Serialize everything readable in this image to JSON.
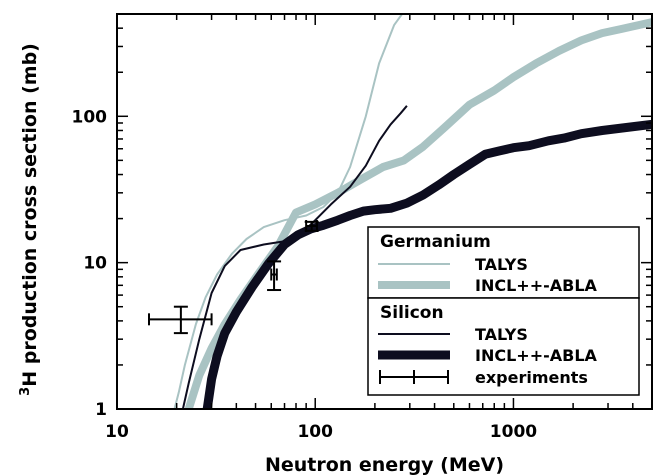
{
  "chart_data": {
    "type": "line",
    "xlabel": "Neutron energy (MeV)",
    "ylabel": "H production cross section (mb)",
    "ylabel_superscript": "3",
    "xscale": "log",
    "yscale": "log",
    "xlim": [
      10,
      5000
    ],
    "ylim": [
      1,
      500
    ],
    "xticks": [
      10,
      100,
      1000
    ],
    "xtick_labels": [
      "10",
      "100",
      "1000"
    ],
    "yticks": [
      1,
      10,
      100
    ],
    "ytick_labels": [
      "1",
      "10",
      "100"
    ],
    "grid": false,
    "legend_position": "lower-right",
    "legend_groups": [
      "Germanium",
      "Silicon"
    ],
    "colors": {
      "germanium": "#a9c3c3",
      "silicon": "#0d0d1f",
      "experiments": "#000000"
    },
    "series": [
      {
        "name": "TALYS",
        "group": "Germanium",
        "style": "thin",
        "x": [
          19.5,
          20.5,
          22,
          25,
          28,
          32,
          38,
          45,
          55,
          70,
          90,
          110,
          130,
          150,
          180,
          210,
          250,
          280
        ],
        "y": [
          1.0,
          1.3,
          2.0,
          3.8,
          5.8,
          8.3,
          11.5,
          14.5,
          17.5,
          19.5,
          21,
          24,
          30,
          45,
          100,
          230,
          420,
          520
        ]
      },
      {
        "name": "INCL++-ABLA",
        "group": "Germanium",
        "style": "thick",
        "x": [
          23,
          26,
          30,
          35,
          42,
          52,
          65,
          80,
          100,
          130,
          170,
          220,
          280,
          350,
          450,
          600,
          800,
          1000,
          1300,
          1700,
          2200,
          2800,
          3500,
          5000
        ],
        "y": [
          1.0,
          1.7,
          2.6,
          3.8,
          5.6,
          8.5,
          13,
          22,
          25,
          30,
          37,
          45,
          50,
          62,
          84,
          120,
          150,
          185,
          230,
          280,
          330,
          370,
          395,
          440
        ]
      },
      {
        "name": "TALYS",
        "group": "Silicon",
        "style": "thin",
        "x": [
          21.5,
          23,
          26,
          30,
          35,
          42,
          55,
          70,
          85,
          100,
          120,
          150,
          180,
          210,
          240,
          270,
          290
        ],
        "y": [
          1.0,
          1.5,
          3.0,
          6.2,
          9.5,
          12.2,
          13.3,
          14,
          15.8,
          19.5,
          25,
          33,
          46,
          68,
          88,
          105,
          118
        ]
      },
      {
        "name": "INCL++-ABLA",
        "group": "Silicon",
        "style": "thick",
        "x": [
          28.5,
          30,
          32,
          35,
          40,
          48,
          58,
          70,
          82,
          95,
          110,
          130,
          150,
          175,
          200,
          240,
          290,
          350,
          420,
          500,
          600,
          720,
          850,
          1000,
          1200,
          1500,
          1800,
          2200,
          2800,
          3500,
          5000
        ],
        "y": [
          1.0,
          1.6,
          2.3,
          3.3,
          4.6,
          6.8,
          9.8,
          13.3,
          15.5,
          17,
          18,
          19.5,
          21,
          22.5,
          23,
          23.5,
          25.5,
          29,
          34,
          40,
          47,
          55,
          58,
          61,
          63,
          68,
          71,
          76,
          80,
          83,
          88
        ]
      }
    ],
    "experiments": {
      "name": "experiments",
      "points": [
        {
          "x": 21,
          "y": 4.1,
          "xerr": [
            14.5,
            30
          ],
          "yerr": [
            3.3,
            5.0
          ]
        },
        {
          "x": 62,
          "y": 8.3,
          "xerr": [
            60,
            64
          ],
          "yerr": [
            6.5,
            10.2
          ]
        },
        {
          "x": 96,
          "y": 17.8,
          "xerr": [
            90,
            102
          ],
          "yerr": [
            16.5,
            19.0
          ]
        }
      ]
    }
  }
}
